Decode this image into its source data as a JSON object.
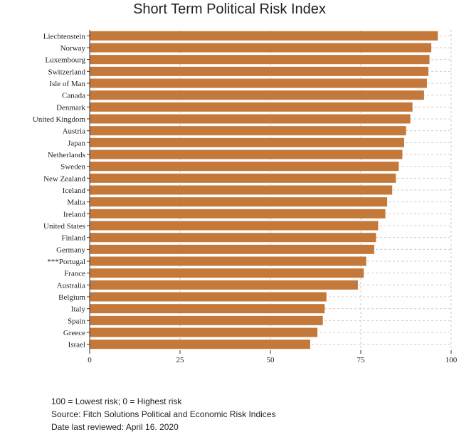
{
  "chart_data": {
    "type": "bar",
    "orientation": "horizontal",
    "title": "Short Term Political Risk Index",
    "xlabel": "",
    "ylabel": "",
    "xlim": [
      0,
      100
    ],
    "xticks": [
      0,
      25,
      50,
      75,
      100
    ],
    "grid": true,
    "bar_color": "#c4783a",
    "categories": [
      "Liechtenstein",
      "Norway",
      "Luxembourg",
      "Switzerland",
      "Isle of Man",
      "Canada",
      "Denmark",
      "United Kingdom",
      "Austria",
      "Japan",
      "Netherlands",
      "Sweden",
      "New Zealand",
      "Iceland",
      "Malta",
      "Ireland",
      "United States",
      "Finland",
      "Germany",
      "***Portugal",
      "France",
      "Australia",
      "Belgium",
      "Italy",
      "Spain",
      "Greece",
      "Israel"
    ],
    "values": [
      96.3,
      94.5,
      94.0,
      93.7,
      93.3,
      92.5,
      89.3,
      88.7,
      87.5,
      87.0,
      86.5,
      85.5,
      84.7,
      83.7,
      82.3,
      81.8,
      79.8,
      79.2,
      78.7,
      76.5,
      75.8,
      74.2,
      65.5,
      65.0,
      64.5,
      63.0,
      61.0
    ]
  },
  "notes": {
    "line1": "100 = Lowest risk; 0 = Highest risk",
    "line2": "Source: Fitch Solutions Political and Economic Risk Indices",
    "line3": "Date last reviewed: April 16. 2020"
  }
}
